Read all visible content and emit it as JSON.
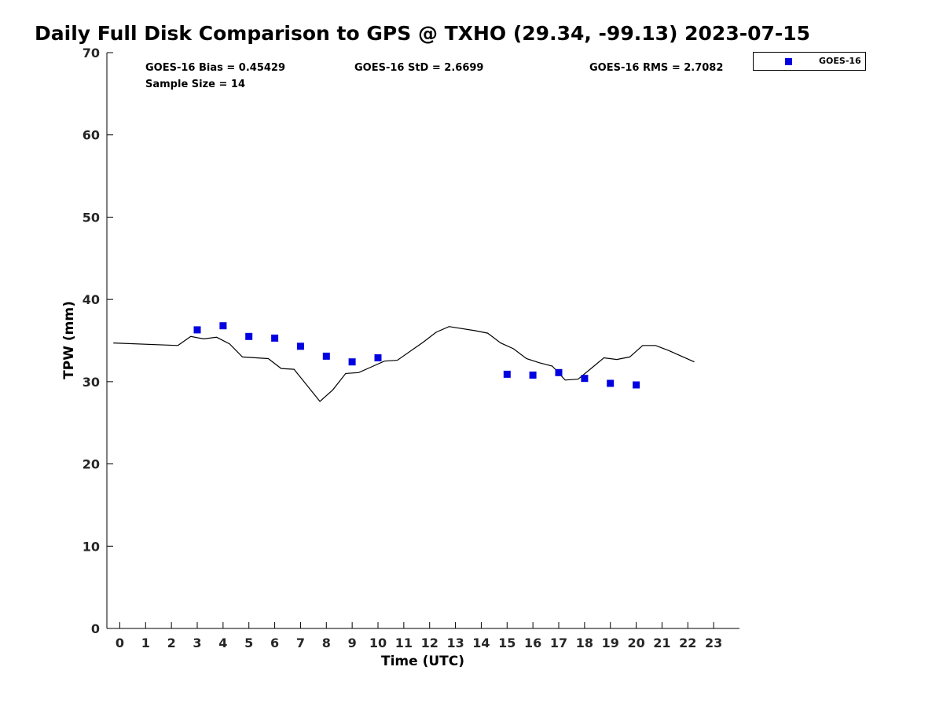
{
  "chart_data": {
    "type": "line",
    "title": "Daily Full Disk Comparison to GPS @ TXHO (29.34, -99.13) 2023-07-15",
    "xlabel": "Time (UTC)",
    "ylabel": "TPW (mm)",
    "xlim": [
      -0.5,
      24.0
    ],
    "ylim": [
      0,
      70
    ],
    "xticks": [
      "0",
      "1",
      "2",
      "3",
      "4",
      "5",
      "6",
      "7",
      "8",
      "9",
      "10",
      "11",
      "12",
      "13",
      "14",
      "15",
      "16",
      "17",
      "18",
      "19",
      "20",
      "21",
      "22",
      "23"
    ],
    "yticks": [
      "0",
      "10",
      "20",
      "30",
      "40",
      "50",
      "60",
      "70"
    ],
    "grid": false,
    "legend_position": "outside-top-right",
    "series": [
      {
        "style": "line",
        "color": "#000000",
        "x": [
          -0.25,
          2.25,
          2.75,
          3.25,
          3.75,
          4.25,
          4.75,
          5.75,
          6.25,
          6.75,
          7.75,
          8.25,
          8.75,
          9.25,
          9.75,
          10.25,
          10.75,
          11.75,
          12.25,
          12.75,
          13.75,
          14.25,
          14.75,
          15.25,
          15.75,
          16.25,
          16.75,
          17.25,
          17.75,
          18.25,
          18.75,
          19.25,
          19.75,
          20.25,
          20.75,
          21.25,
          22.25
        ],
        "y": [
          34.7,
          34.4,
          35.5,
          35.2,
          35.4,
          34.6,
          33.0,
          32.8,
          31.6,
          31.5,
          27.6,
          29.0,
          31.0,
          31.1,
          31.8,
          32.5,
          32.6,
          34.8,
          36.0,
          36.7,
          36.2,
          35.9,
          34.7,
          34.0,
          32.8,
          32.3,
          31.9,
          30.2,
          30.3,
          31.6,
          32.9,
          32.7,
          33.0,
          34.4,
          34.4,
          33.8,
          32.4
        ]
      },
      {
        "name": "GOES-16",
        "style": "markers",
        "color": "#0000e1",
        "x": [
          3,
          4,
          5,
          6,
          7,
          8,
          9,
          10,
          15,
          16,
          17,
          18,
          19,
          20
        ],
        "y": [
          36.3,
          36.8,
          35.5,
          35.3,
          34.3,
          33.1,
          32.4,
          32.9,
          30.9,
          30.8,
          31.1,
          30.4,
          29.8,
          29.6
        ]
      }
    ],
    "annotations": {
      "bias": "GOES-16 Bias = 0.45429",
      "std": "GOES-16 StD = 2.6699",
      "rms": "GOES-16 RMS = 2.7082",
      "sample": "Sample Size = 14"
    },
    "legend": [
      {
        "label": "GOES-16",
        "color": "#0000e1"
      }
    ]
  }
}
